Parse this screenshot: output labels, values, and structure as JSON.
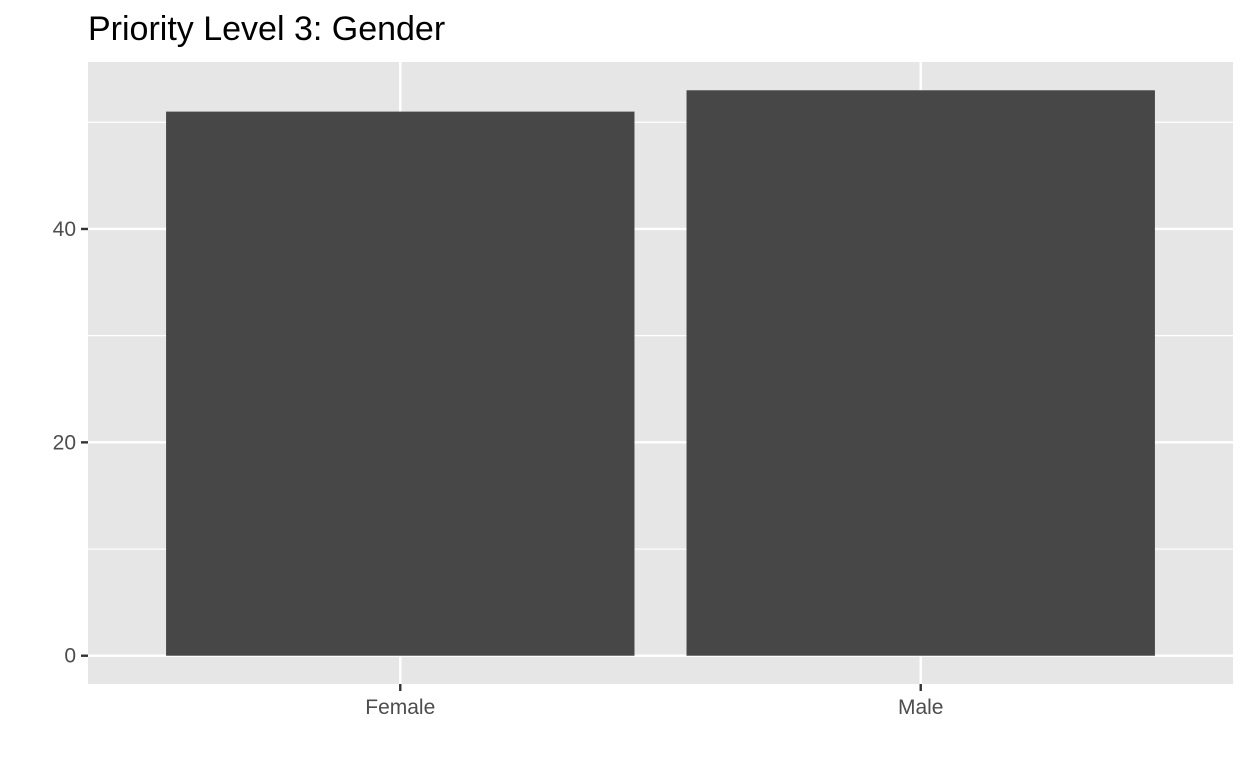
{
  "chart_data": {
    "type": "bar",
    "title": "Priority Level 3: Gender",
    "xlabel": "",
    "ylabel": "",
    "categories": [
      "Female",
      "Male"
    ],
    "values": [
      51,
      53
    ],
    "ylim": [
      -2.65,
      55.65
    ],
    "yticks": [
      0,
      20,
      40
    ],
    "grid": true,
    "colors": {
      "panel": "#e6e6e6",
      "bar": "#474747",
      "grid_major": "#ffffff",
      "tick_text": "#4d4d4d",
      "tick_mark": "#333333"
    }
  }
}
